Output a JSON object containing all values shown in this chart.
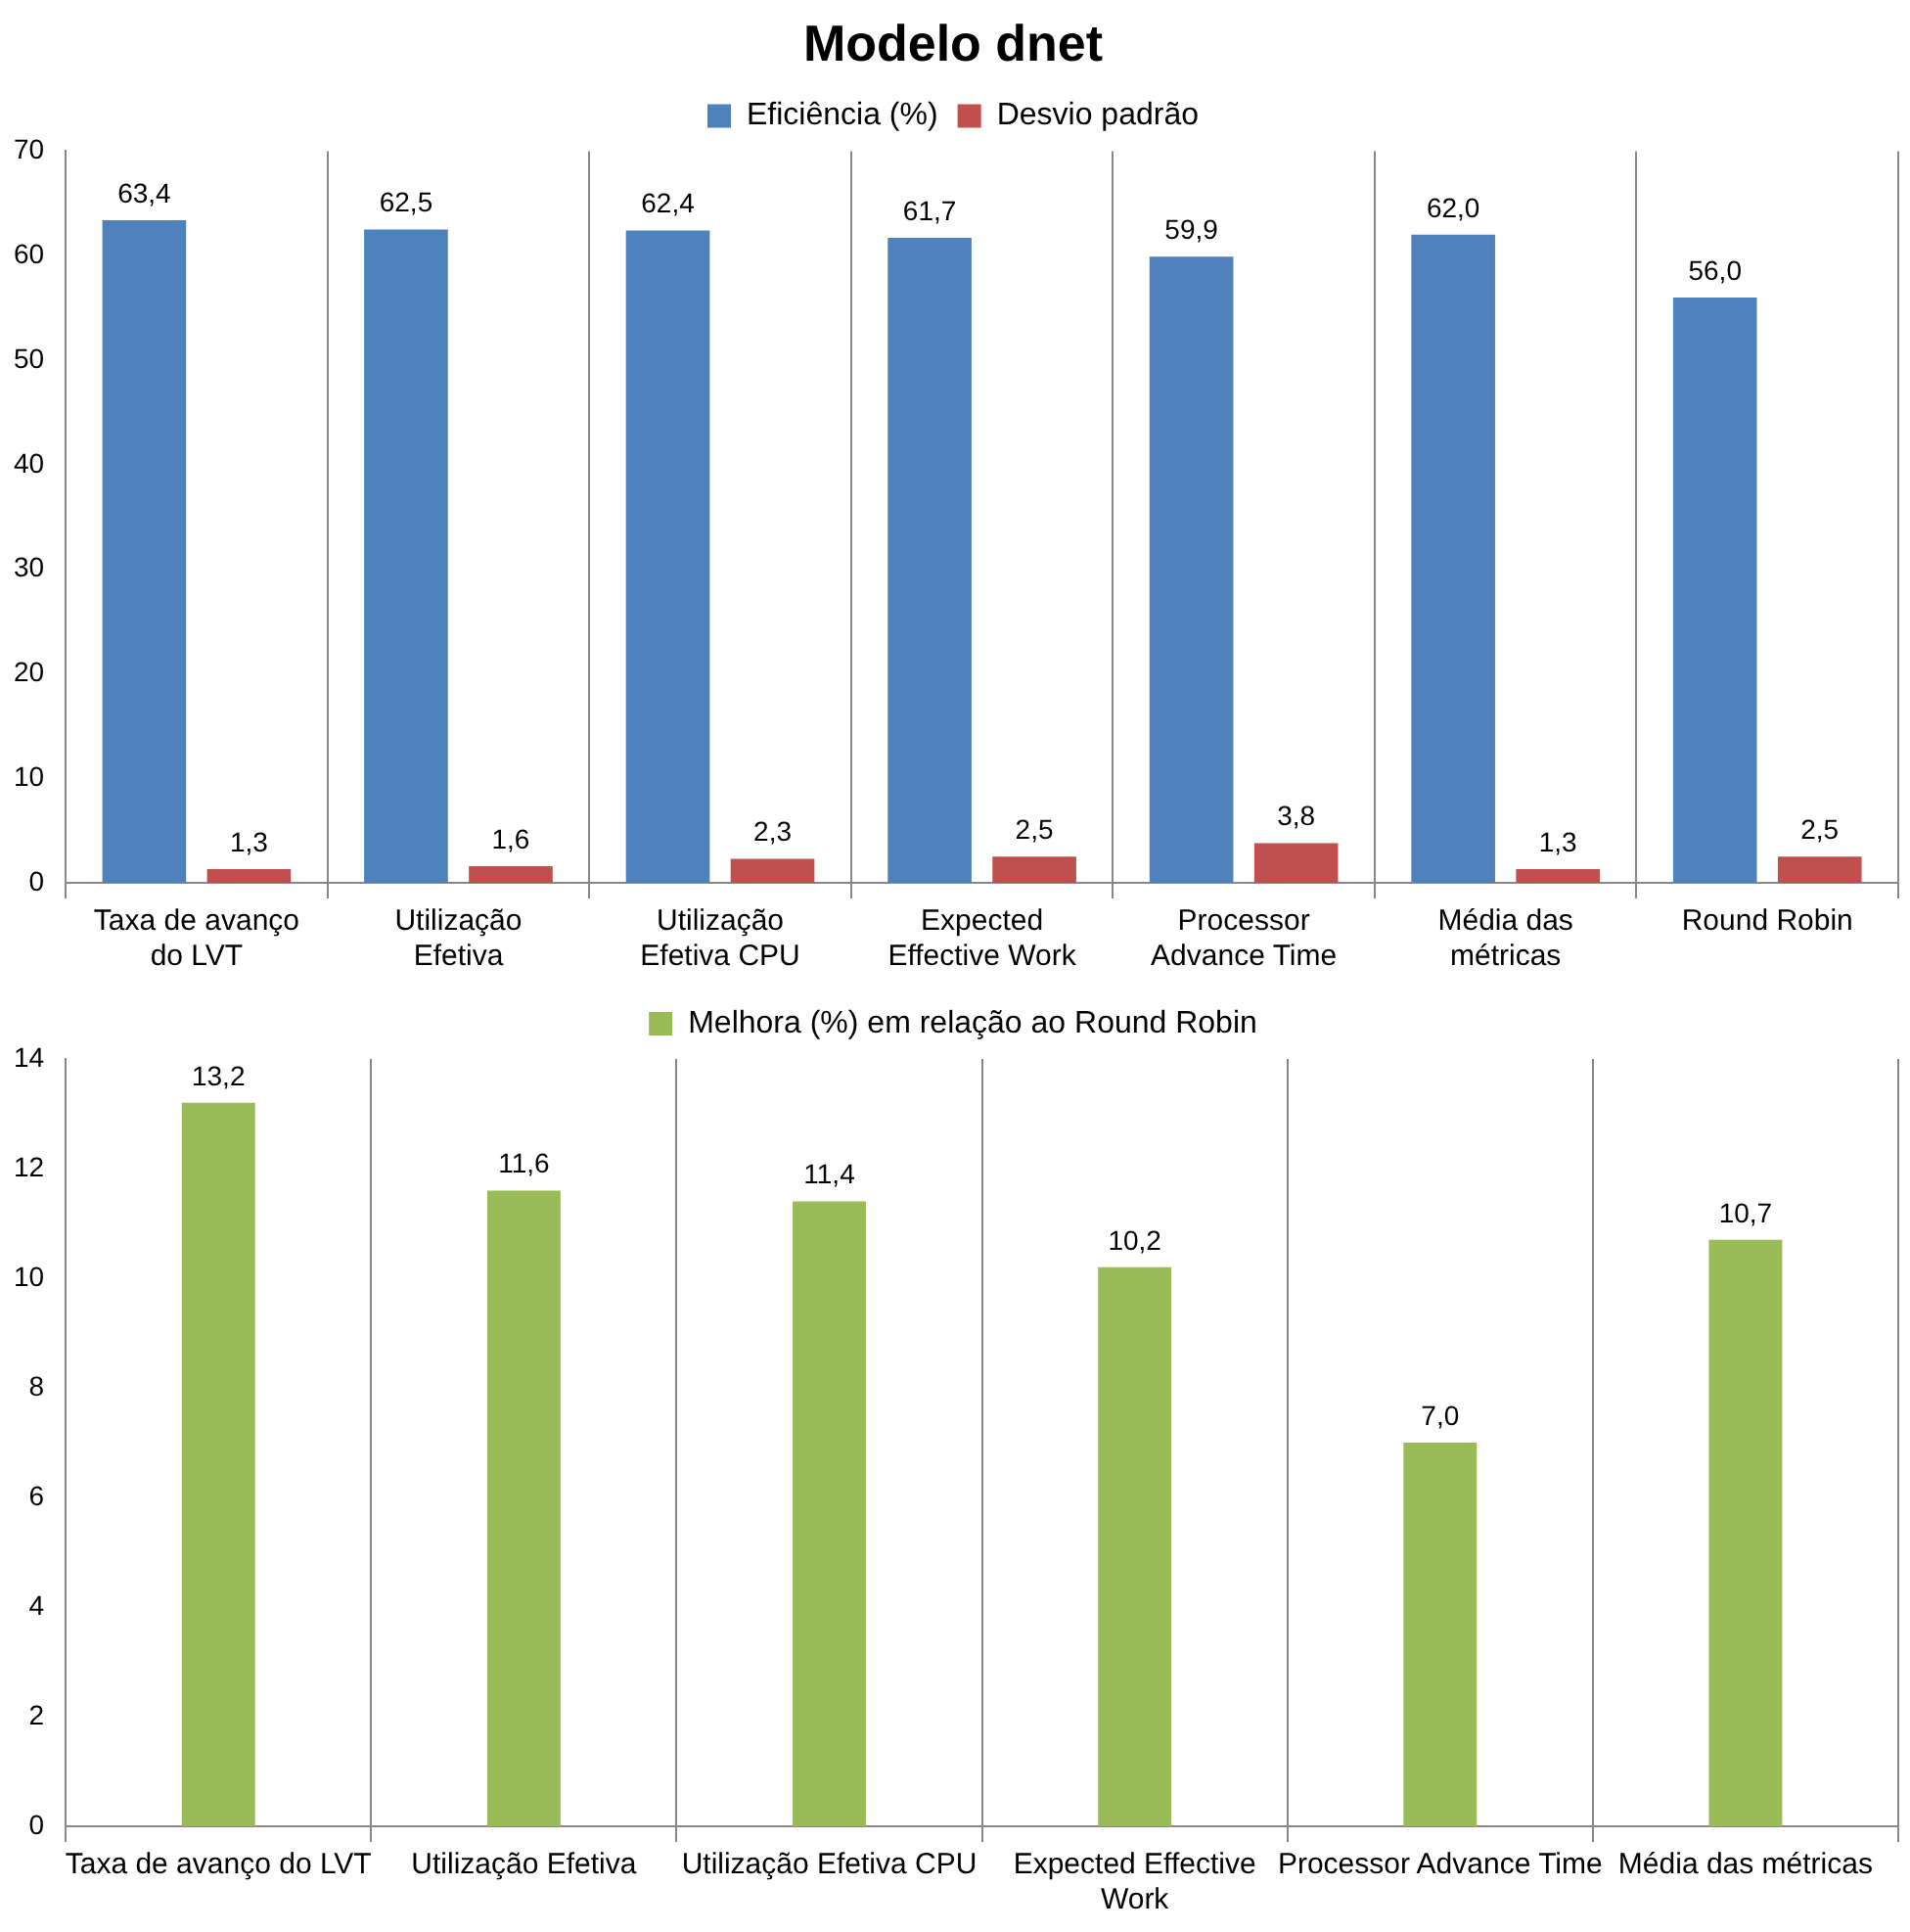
{
  "chart_data": [
    {
      "type": "bar",
      "title": "Modelo dnet",
      "categories": [
        "Taxa de avanço do LVT",
        "Utilização Efetiva",
        "Utilização Efetiva CPU",
        "Expected Effective Work",
        "Processor Advance Time",
        "Média das métricas",
        "Round Robin"
      ],
      "series": [
        {
          "name": "Eficiência (%)",
          "color": "#4f81bd",
          "values": [
            63.4,
            62.5,
            62.4,
            61.7,
            59.9,
            62.0,
            56.0
          ],
          "value_labels": [
            "63,4",
            "62,5",
            "62,4",
            "61,7",
            "59,9",
            "62,0",
            "56,0"
          ]
        },
        {
          "name": "Desvio padrão",
          "color": "#c0504d",
          "values": [
            1.3,
            1.6,
            2.3,
            2.5,
            3.8,
            1.3,
            2.5
          ],
          "value_labels": [
            "1,3",
            "1,6",
            "2,3",
            "2,5",
            "3,8",
            "1,3",
            "2,5"
          ]
        }
      ],
      "ylim": [
        0,
        70
      ],
      "yticks": [
        0,
        10,
        20,
        30,
        40,
        50,
        60,
        70
      ],
      "grid": "x",
      "legend": "top"
    },
    {
      "type": "bar",
      "categories": [
        "Taxa de avanço do LVT",
        "Utilização Efetiva",
        "Utilização Efetiva CPU",
        "Expected Effective Work",
        "Processor Advance Time",
        "Média das métricas"
      ],
      "series": [
        {
          "name": "Melhora (%) em relação ao Round Robin",
          "color": "#9bbb59",
          "values": [
            13.2,
            11.6,
            11.4,
            10.2,
            7.0,
            10.7
          ],
          "value_labels": [
            "13,2",
            "11,6",
            "11,4",
            "10,2",
            "7,0",
            "10,7"
          ]
        }
      ],
      "ylim": [
        0,
        14
      ],
      "yticks": [
        0,
        2,
        4,
        6,
        8,
        10,
        12,
        14
      ],
      "grid": "x",
      "legend": "top"
    }
  ]
}
